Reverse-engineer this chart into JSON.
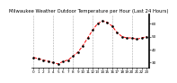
{
  "title": "Milwaukee Weather Outdoor Temperature per Hour (Last 24 Hours)",
  "hours": [
    0,
    1,
    2,
    3,
    4,
    5,
    6,
    7,
    8,
    9,
    10,
    11,
    12,
    13,
    14,
    15,
    16,
    17,
    18,
    19,
    20,
    21,
    22,
    23
  ],
  "temps": [
    34,
    33,
    32,
    31,
    30,
    29,
    31,
    32,
    35,
    38,
    43,
    49,
    55,
    60,
    62,
    61,
    58,
    53,
    50,
    49,
    49,
    48,
    49,
    50
  ],
  "line_color": "#ff0000",
  "marker_color": "#000000",
  "bg_color": "#ffffff",
  "grid_color": "#aaaaaa",
  "ylim": [
    26,
    67
  ],
  "ytick_vals": [
    30,
    40,
    50,
    60
  ],
  "ytick_labels": [
    "30",
    "40",
    "50",
    "60"
  ],
  "xtick_vals": [
    0,
    1,
    2,
    3,
    4,
    5,
    6,
    7,
    8,
    9,
    10,
    11,
    12,
    13,
    14,
    15,
    16,
    17,
    18,
    19,
    20,
    21,
    22,
    23
  ],
  "title_fontsize": 3.8,
  "tick_fontsize": 3.0,
  "grid_vlines": [
    0,
    4,
    8,
    12,
    16,
    20,
    24
  ],
  "right_border_x": 0.98
}
